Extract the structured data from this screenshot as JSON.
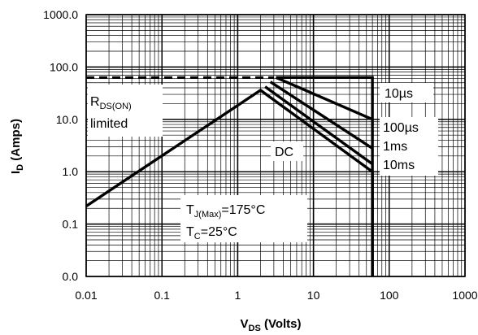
{
  "chart_data": {
    "type": "line",
    "xscale": "log",
    "yscale": "log",
    "xlim": [
      0.01,
      1000
    ],
    "ylim": [
      0.01,
      1000
    ],
    "grid": true,
    "x_ticks": [
      {
        "v": 0.01,
        "label": "0.01"
      },
      {
        "v": 0.1,
        "label": "0.1"
      },
      {
        "v": 1,
        "label": "1"
      },
      {
        "v": 10,
        "label": "10"
      },
      {
        "v": 100,
        "label": "100"
      },
      {
        "v": 1000,
        "label": "1000"
      }
    ],
    "y_ticks": [
      {
        "v": 0.01,
        "label": "0.0"
      },
      {
        "v": 0.1,
        "label": "0.1"
      },
      {
        "v": 1,
        "label": "1.0"
      },
      {
        "v": 10,
        "label": "10.0"
      },
      {
        "v": 100,
        "label": "100.0"
      },
      {
        "v": 1000,
        "label": "1000.0"
      }
    ],
    "xlabel": {
      "main": "V",
      "sub": "DS",
      "rest": " (Volts)"
    },
    "ylabel": {
      "main": "I",
      "sub": "D",
      "rest": " (Amps)"
    },
    "limit_line": {
      "name": "RDS(ON) limited",
      "x": [
        0.01,
        3
      ],
      "y": [
        63,
        63
      ]
    },
    "series": [
      {
        "name": "DC",
        "x": [
          0.01,
          2,
          60,
          60
        ],
        "y": [
          0.22,
          36,
          1.0,
          0.01
        ]
      },
      {
        "name": "10ms",
        "x": [
          2.3,
          60
        ],
        "y": [
          42,
          1.4
        ]
      },
      {
        "name": "1ms",
        "x": [
          2.7,
          60
        ],
        "y": [
          52,
          2.8
        ]
      },
      {
        "name": "100µs",
        "x": [
          3.2,
          60
        ],
        "y": [
          63,
          10
        ]
      },
      {
        "name": "10µs",
        "x": [
          3.2,
          60,
          60
        ],
        "y": [
          63,
          63,
          0.01
        ]
      }
    ],
    "annotations": {
      "rds": {
        "main": "R",
        "sub": "DS(ON)",
        "line2": "limited"
      },
      "dc": "DC",
      "us10": "10µs",
      "us100": "100µs",
      "ms1": "1ms",
      "ms10": "10ms",
      "tj": {
        "main": "T",
        "sub": "J(Max)",
        "rest": "=175°C"
      },
      "tc": {
        "main": "T",
        "sub": "C",
        "rest": "=25°C"
      }
    }
  }
}
